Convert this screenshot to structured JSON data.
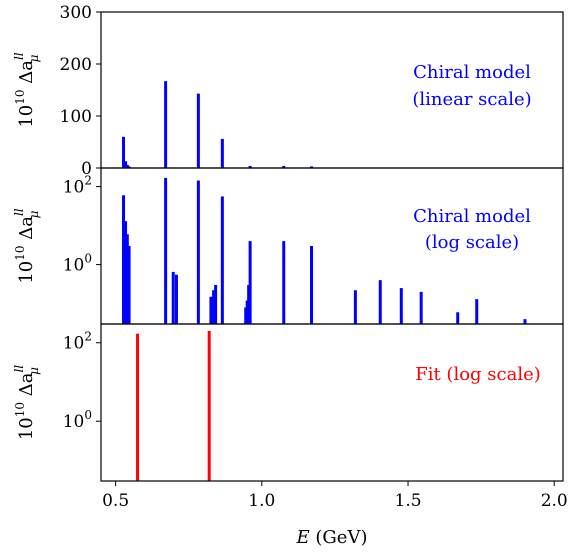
{
  "chart_data": [
    {
      "type": "bar",
      "scale": "linear",
      "ylim": [
        0,
        300
      ],
      "yticks": [
        0,
        100,
        200,
        300
      ],
      "ytick_labels": [
        "0",
        "100",
        "200",
        "300"
      ],
      "ylabel_prefix": "10",
      "ylabel_exp": "10",
      "ylabel_symbol": "Δa",
      "ylabel_sup": "ll",
      "ylabel_sub": "μ",
      "color": "#0000ff",
      "annotation": [
        "Chiral model",
        "(linear scale)"
      ],
      "points": [
        {
          "x": 0.527,
          "y": 60
        },
        {
          "x": 0.534,
          "y": 13
        },
        {
          "x": 0.54,
          "y": 6
        },
        {
          "x": 0.546,
          "y": 3
        },
        {
          "x": 0.671,
          "y": 167
        },
        {
          "x": 0.783,
          "y": 143
        },
        {
          "x": 0.865,
          "y": 56
        },
        {
          "x": 0.96,
          "y": 4
        },
        {
          "x": 1.075,
          "y": 4
        },
        {
          "x": 1.17,
          "y": 3
        }
      ]
    },
    {
      "type": "bar",
      "scale": "log",
      "ylim": [
        0.03,
        300
      ],
      "yticks": [
        1,
        100
      ],
      "ytick_labels": [
        {
          "base": "10",
          "exp": "0"
        },
        {
          "base": "10",
          "exp": "2"
        }
      ],
      "ylabel_prefix": "10",
      "ylabel_exp": "10",
      "ylabel_symbol": "Δa",
      "ylabel_sup": "ll",
      "ylabel_sub": "μ",
      "color": "#0000ff",
      "annotation": [
        "Chiral model",
        "(log scale)"
      ],
      "points": [
        {
          "x": 0.527,
          "y": 60
        },
        {
          "x": 0.534,
          "y": 13
        },
        {
          "x": 0.54,
          "y": 6
        },
        {
          "x": 0.546,
          "y": 3
        },
        {
          "x": 0.671,
          "y": 167
        },
        {
          "x": 0.697,
          "y": 0.65
        },
        {
          "x": 0.708,
          "y": 0.55
        },
        {
          "x": 0.783,
          "y": 143
        },
        {
          "x": 0.826,
          "y": 0.15
        },
        {
          "x": 0.835,
          "y": 0.22
        },
        {
          "x": 0.842,
          "y": 0.3
        },
        {
          "x": 0.865,
          "y": 56
        },
        {
          "x": 0.945,
          "y": 0.08
        },
        {
          "x": 0.95,
          "y": 0.12
        },
        {
          "x": 0.955,
          "y": 0.3
        },
        {
          "x": 0.96,
          "y": 4
        },
        {
          "x": 1.075,
          "y": 4
        },
        {
          "x": 1.17,
          "y": 3
        },
        {
          "x": 1.32,
          "y": 0.22
        },
        {
          "x": 1.405,
          "y": 0.4
        },
        {
          "x": 1.477,
          "y": 0.25
        },
        {
          "x": 1.545,
          "y": 0.2
        },
        {
          "x": 1.67,
          "y": 0.06
        },
        {
          "x": 1.735,
          "y": 0.13
        },
        {
          "x": 1.9,
          "y": 0.04
        }
      ]
    },
    {
      "type": "bar",
      "scale": "log",
      "ylim": [
        0.03,
        300
      ],
      "yticks": [
        1,
        100
      ],
      "ytick_labels": [
        {
          "base": "10",
          "exp": "0"
        },
        {
          "base": "10",
          "exp": "2"
        }
      ],
      "ylabel_prefix": "10",
      "ylabel_exp": "10",
      "ylabel_symbol": "Δa",
      "ylabel_sup": "ll",
      "ylabel_sub": "μ",
      "color": "#ff0000",
      "annotation": [
        "Fit (log scale)"
      ],
      "points": [
        {
          "x": 0.575,
          "y": 170
        },
        {
          "x": 0.82,
          "y": 200
        }
      ]
    }
  ],
  "xaxis": {
    "xlim": [
      0.45,
      2.03
    ],
    "ticks": [
      0.5,
      1.0,
      1.5,
      2.0
    ],
    "tick_labels": [
      "0.5",
      "1.0",
      "1.5",
      "2.0"
    ],
    "label_var": "E",
    "label_unit": "(GeV)"
  }
}
